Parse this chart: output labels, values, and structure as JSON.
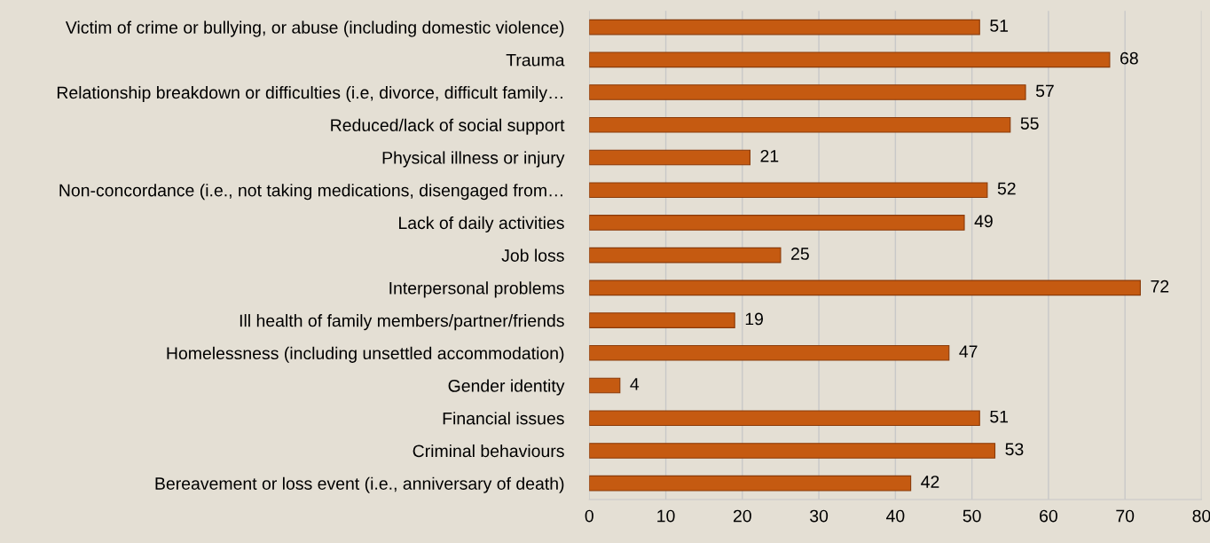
{
  "chart_data": {
    "type": "bar",
    "orientation": "horizontal",
    "categories": [
      "Victim of crime or bullying, or abuse (including domestic violence)",
      "Trauma",
      "Relationship breakdown or difficulties (i.e, divorce, difficult family…",
      "Reduced/lack of social support",
      "Physical illness or injury",
      "Non-concordance (i.e., not taking medications, disengaged from…",
      "Lack of daily activities",
      "Job loss",
      "Interpersonal problems",
      "Ill health of family members/partner/friends",
      "Homelessness (including unsettled accommodation)",
      "Gender identity",
      "Financial issues",
      "Criminal behaviours",
      "Bereavement or loss event (i.e., anniversary of death)"
    ],
    "values": [
      51,
      68,
      57,
      55,
      21,
      52,
      49,
      25,
      72,
      19,
      47,
      4,
      51,
      53,
      42
    ],
    "color": "#c55a11",
    "xlim": [
      0,
      80
    ],
    "xticks": [
      0,
      10,
      20,
      30,
      40,
      50,
      60,
      70,
      80
    ],
    "grid": "x",
    "data_labels": true
  }
}
